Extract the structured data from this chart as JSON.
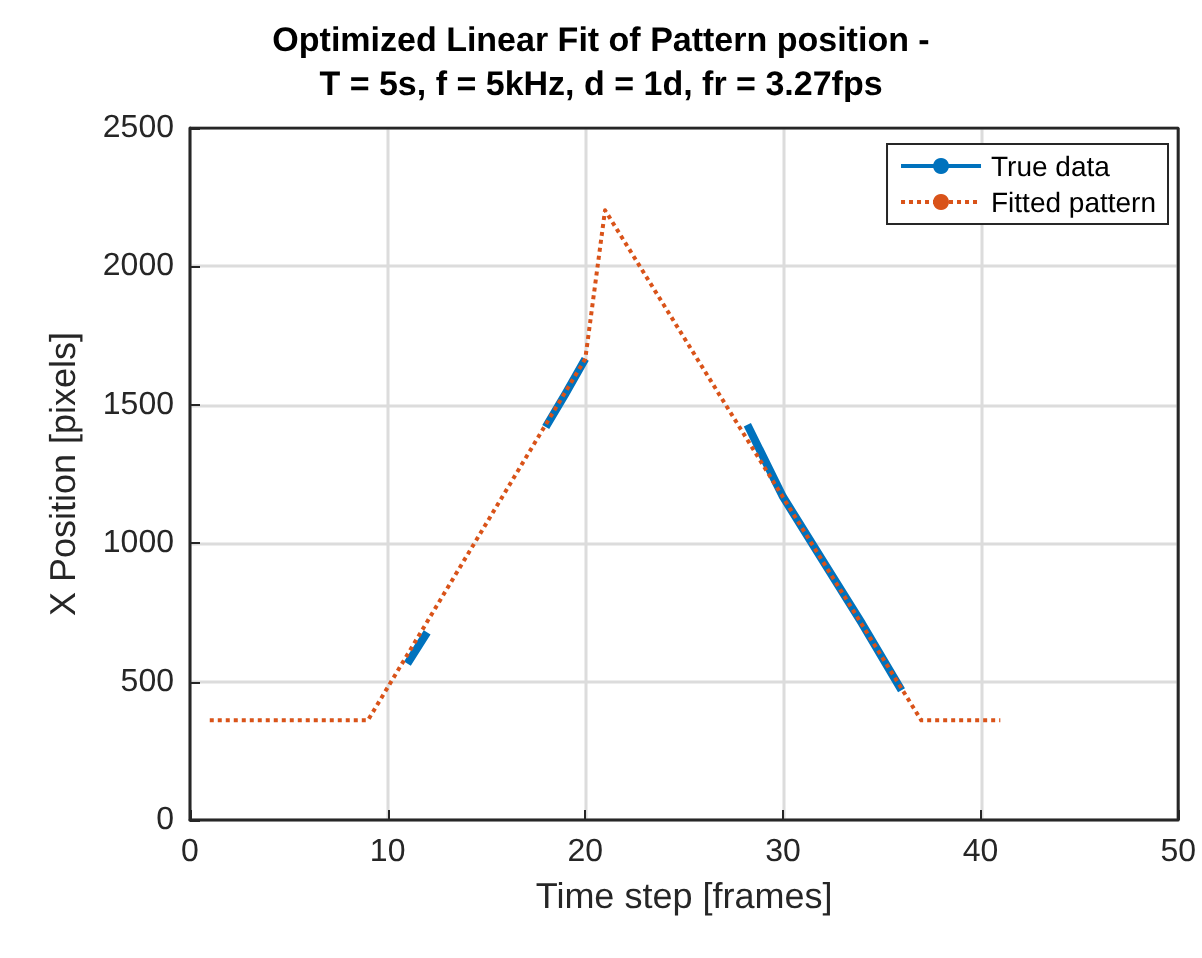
{
  "chart_data": {
    "type": "line",
    "title": "Optimized Linear Fit of Pattern position -\nT = 5s, f = 5kHz, d = 1d, fr = 3.27fps",
    "xlabel": "Time step [frames]",
    "ylabel": "X Position [pixels]",
    "xlim": [
      0,
      50
    ],
    "xticks": [
      0,
      10,
      20,
      30,
      40,
      50
    ],
    "ylim": [
      0,
      2500
    ],
    "yticks": [
      0,
      500,
      1000,
      1500,
      2000,
      2500
    ],
    "grid": true,
    "legend": "top right",
    "marker": "none",
    "series": [
      {
        "name": "True data",
        "color": "#0072bd",
        "line_style": "solid",
        "x": [
          11,
          12,
          null,
          18,
          19,
          20,
          null,
          28.2,
          30,
          32,
          34,
          36
        ],
        "values": [
          565,
          678,
          null,
          1420,
          1540,
          1666,
          null,
          1428,
          1168,
          939,
          710,
          469
        ]
      },
      {
        "name": "Fitted pattern",
        "color": "#d95319",
        "line_style": "dotted",
        "x": [
          1,
          9,
          20,
          21,
          37,
          41
        ],
        "values": [
          360,
          360,
          1666,
          2203,
          360,
          360
        ]
      }
    ]
  }
}
